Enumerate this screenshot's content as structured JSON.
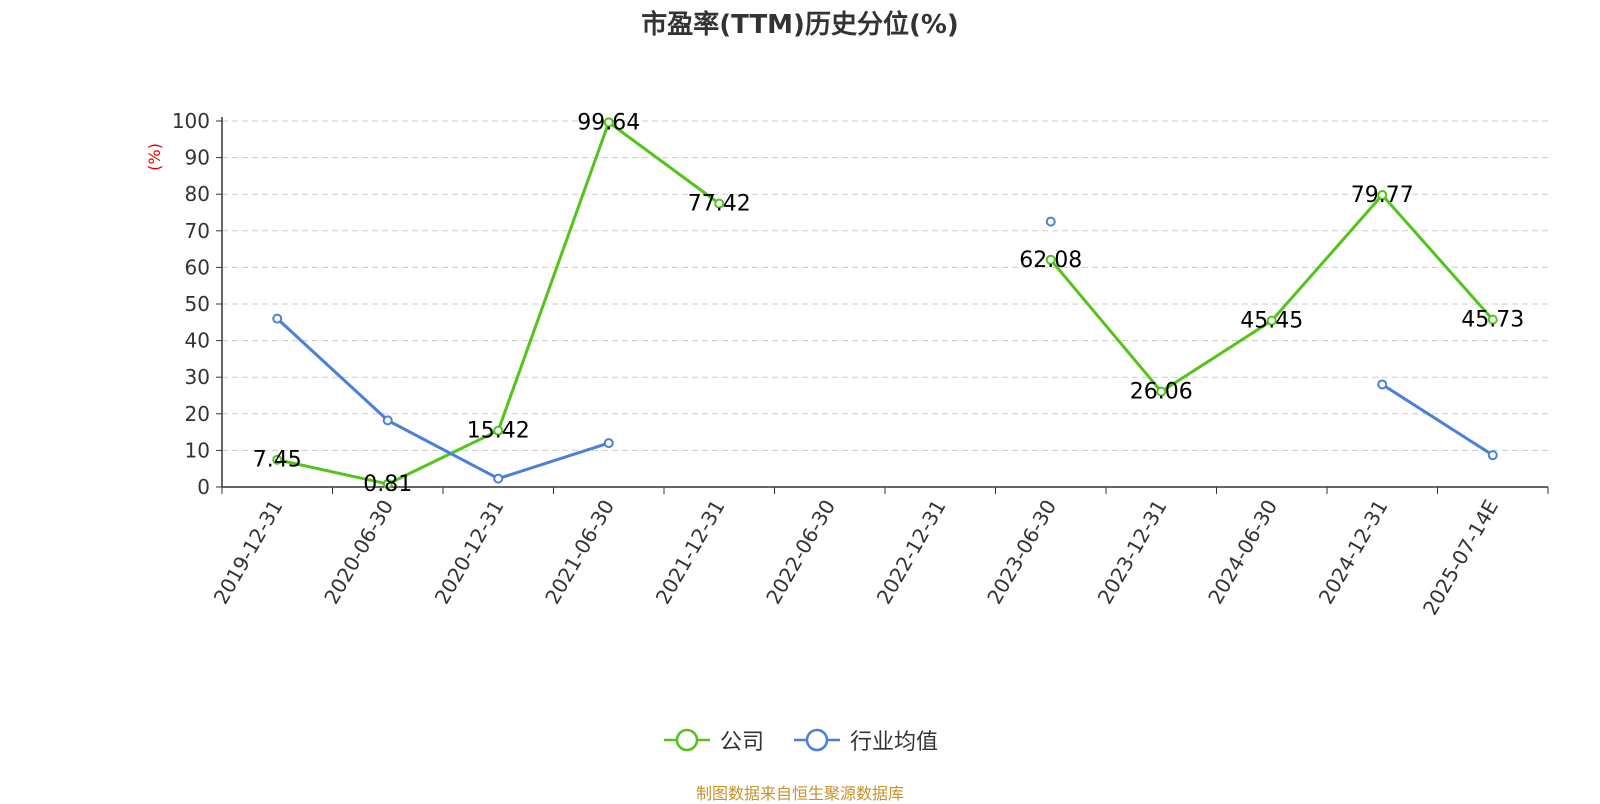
{
  "chart_data": {
    "type": "line",
    "title": "市盈率(TTM)历史分位(%)",
    "ylabel": "(%)",
    "ylim": [
      0,
      100
    ],
    "yticks": [
      0,
      10,
      20,
      30,
      40,
      50,
      60,
      70,
      80,
      90,
      100
    ],
    "grid": true,
    "legend_position": "bottom",
    "categories": [
      "2019-12-31",
      "2020-06-30",
      "2020-12-31",
      "2021-06-30",
      "2021-12-31",
      "2022-06-30",
      "2022-12-31",
      "2023-06-30",
      "2023-12-31",
      "2024-06-30",
      "2024-12-31",
      "2025-07-14E"
    ],
    "series": [
      {
        "name": "公司",
        "color": "#52c41a",
        "show_labels": true,
        "values": [
          7.45,
          0.81,
          15.42,
          99.64,
          77.42,
          null,
          null,
          62.08,
          26.06,
          45.45,
          79.77,
          45.73
        ]
      },
      {
        "name": "行业均值",
        "color": "#4a7fdb",
        "show_labels": false,
        "values": [
          46.0,
          18.2,
          2.3,
          12.0,
          null,
          null,
          null,
          72.5,
          null,
          null,
          28.0,
          8.7
        ]
      }
    ]
  },
  "source": "制图数据来自恒生聚源数据库"
}
